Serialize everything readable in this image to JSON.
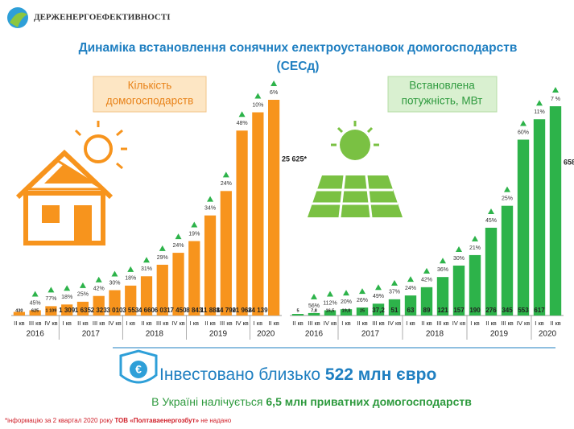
{
  "header": {
    "logo_text": "ДЕРЖЕНЕРГОЕФЕКТИВНОСТІ"
  },
  "title": [
    "Динаміка встановлення сонячних електроустановок домогосподарств",
    "(СЕСд)"
  ],
  "chart_data": [
    {
      "type": "bar",
      "label": [
        "Кількість",
        "домогосподарств"
      ],
      "color": "#f7941d",
      "categories": [
        "II кв",
        "III кв",
        "IV кв",
        "I кв",
        "II кв",
        "III кв",
        "IV кв",
        "I кв",
        "II кв",
        "III кв",
        "IV кв",
        "I кв",
        "II кв",
        "III кв",
        "IV кв",
        "I кв",
        "II кв"
      ],
      "groups": [
        "2016",
        "2017",
        "2018",
        "2019",
        "2020"
      ],
      "values": [
        430,
        625,
        1109,
        1309,
        1635,
        2323,
        3010,
        3553,
        4660,
        6031,
        7450,
        8843,
        11888,
        14790,
        21968,
        24139,
        25625
      ],
      "value_labels": [
        "430",
        "625",
        "1 109",
        "1 309",
        "1 635",
        "2 323",
        "3 010",
        "3 553",
        "4 660",
        "6 031",
        "7 450",
        "8 843",
        "11 888",
        "14 790",
        "21 968",
        "24 139",
        "25 625*"
      ],
      "growth_labels": [
        null,
        "45%",
        "77%",
        "18%",
        "25%",
        "42%",
        "30%",
        "18%",
        "31%",
        "29%",
        "24%",
        "19%",
        "34%",
        "24%",
        "48%",
        "10%",
        "6%"
      ]
    },
    {
      "type": "bar",
      "label": [
        "Встановлена",
        "потужність, МВт"
      ],
      "color": "#2db34a",
      "categories": [
        "II кв",
        "III кв",
        "IV кв",
        "I кв",
        "II кв",
        "III кв",
        "IV кв",
        "I кв",
        "II кв",
        "III кв",
        "IV кв",
        "I кв",
        "II кв",
        "III кв",
        "IV кв",
        "I кв",
        "II кв"
      ],
      "groups": [
        "2016",
        "2017",
        "2018",
        "2019",
        "2020"
      ],
      "values": [
        5,
        7.8,
        16.5,
        19.8,
        25,
        37.2,
        51,
        63,
        89,
        121,
        157,
        190,
        276,
        345,
        553,
        617,
        658
      ],
      "value_labels": [
        "5",
        "7,8",
        "16,5",
        "19,8",
        "25",
        "37,2",
        "51",
        "63",
        "89",
        "121",
        "157",
        "190",
        "276",
        "345",
        "553",
        "617",
        "658*"
      ],
      "growth_labels": [
        null,
        "56%",
        "112%",
        "20%",
        "26%",
        "49%",
        "37%",
        "24%",
        "42%",
        "36%",
        "30%",
        "21%",
        "45%",
        "25%",
        "60%",
        "11%",
        "7 %"
      ]
    }
  ],
  "invest": [
    "Інвестовано близько ",
    "522 млн євро"
  ],
  "households": [
    "В Україні налічується ",
    "6,5 млн приватних домогосподарств"
  ],
  "footnote": [
    "*інформацію за 2 квартал 2020 року ",
    "ТОВ «Полтаваенергозбут»",
    " не надано"
  ]
}
